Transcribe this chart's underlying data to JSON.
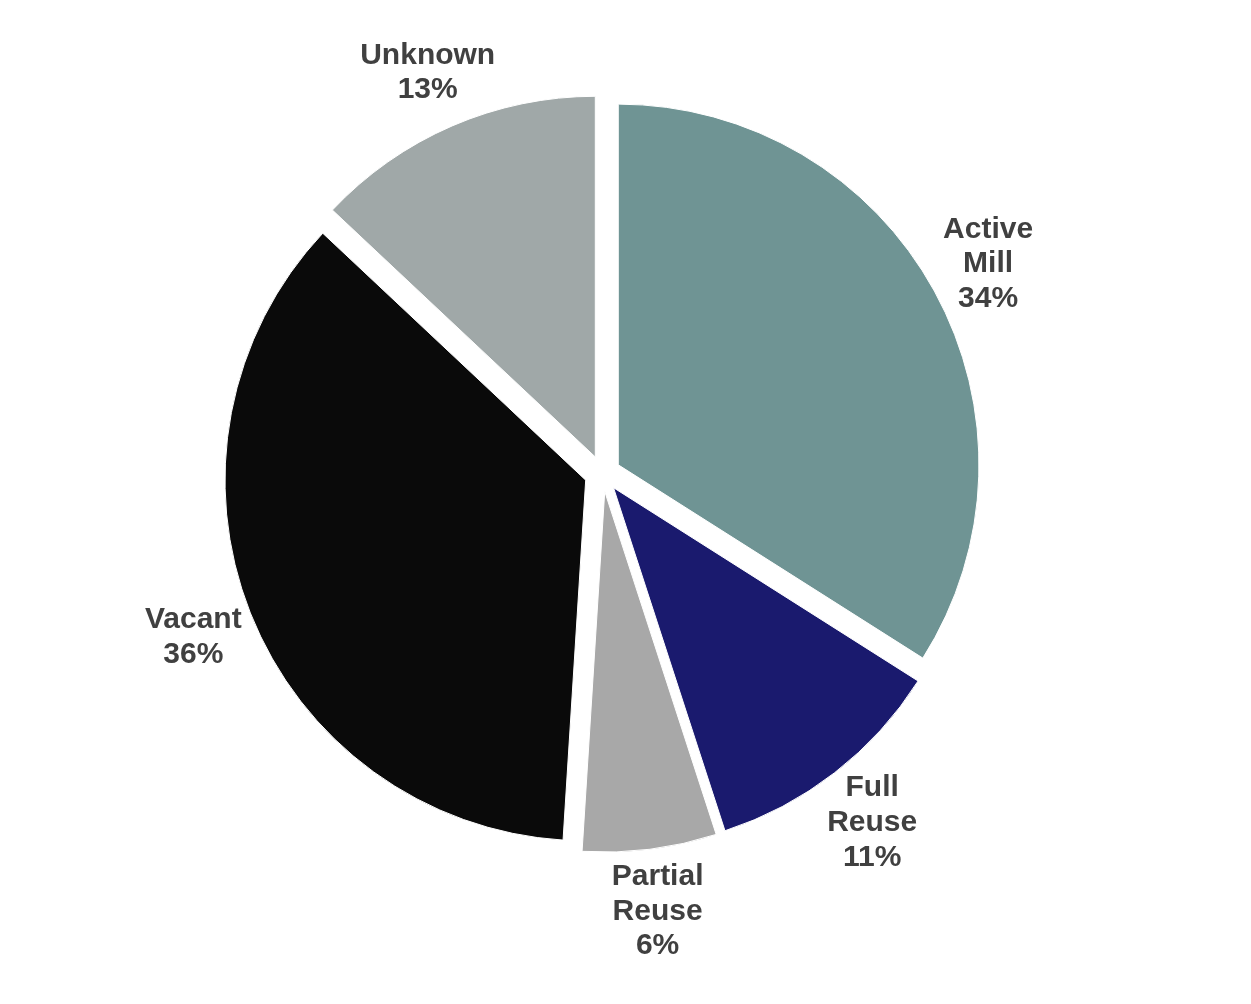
{
  "chart_data": {
    "type": "pie",
    "categories": [
      "Active Mill",
      "Full Reuse",
      "Partial Reuse",
      "Vacant",
      "Unknown"
    ],
    "values": [
      34,
      11,
      6,
      36,
      13
    ],
    "colors": [
      "#6f9494",
      "#1a1a6e",
      "#a8a8a8",
      "#0a0a0a",
      "#a0a8a8"
    ],
    "value_labels": [
      "34%",
      "11%",
      "6%",
      "36%",
      "13%"
    ]
  }
}
